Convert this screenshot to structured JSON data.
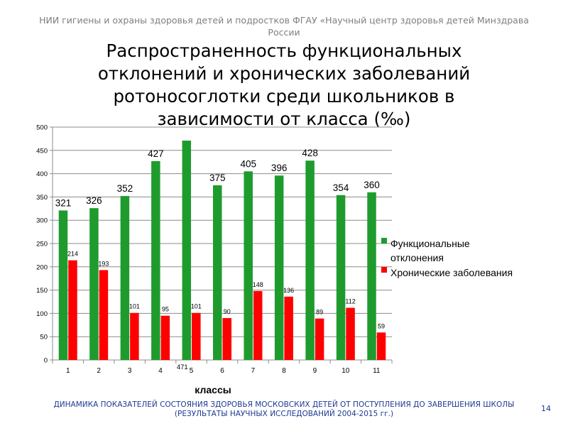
{
  "header": {
    "line1": "НИИ гигиены и охраны здоровья детей и подростков ФГАУ «Научный центр здоровья детей  Минздрава",
    "line2": "России"
  },
  "title": {
    "line1": "Распространенность функциональных",
    "line2": "отклонений и хронических заболеваний",
    "line3": "ротоносоглотки среди школьников в",
    "line4": "зависимости от класса (‰)"
  },
  "footer": {
    "line1": "ДИНАМИКА ПОКАЗАТЕЛЕЙ СОСТОЯНИЯ ЗДОРОВЬЯ МОСКОВСКИХ ДЕТЕЙ ОТ ПОСТУПЛЕНИЯ ДО ЗАВЕРШЕНИЯ ШКОЛЫ",
    "line2": "(РЕЗУЛЬТАТЫ НАУЧНЫХ ИССЛЕДОВАНИЙ 2004-2015 гг.)"
  },
  "page_number": "14",
  "chart_data": {
    "type": "bar",
    "categories": [
      "1",
      "2",
      "3",
      "4",
      "5",
      "6",
      "7",
      "8",
      "9",
      "10",
      "11"
    ],
    "series": [
      {
        "name": "Функциональные отклонения",
        "values": [
          321,
          326,
          352,
          427,
          471,
          375,
          405,
          396,
          428,
          354,
          360
        ],
        "color": "#1f9b2e"
      },
      {
        "name": "Хронические заболевания",
        "values": [
          214,
          193,
          101,
          95,
          101,
          90,
          148,
          136,
          89,
          112,
          59
        ],
        "color": "#ff0000"
      }
    ],
    "xlabel": "классы",
    "ylabel": "",
    "ylim": [
      0,
      500
    ],
    "yticks": [
      "0",
      "50",
      "100",
      "150",
      "200",
      "250",
      "300",
      "350",
      "400",
      "450",
      "500"
    ],
    "grid": true,
    "legend": "right"
  }
}
